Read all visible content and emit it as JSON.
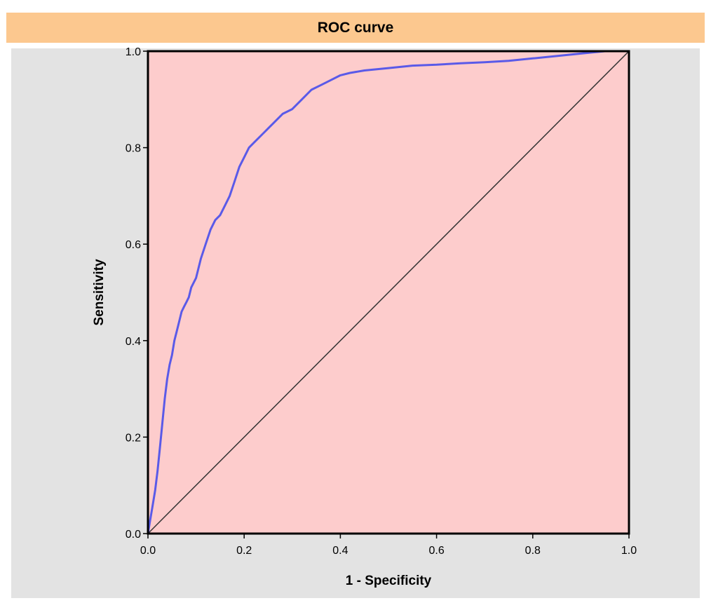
{
  "title_bar": {
    "title": "ROC curve"
  },
  "colors": {
    "title_bar_bg": "#fcc88f",
    "panel_bg": "#e3e3e3",
    "plot_bg": "#fdcccc",
    "curve": "#5a5ae8",
    "reference_line": "#333333"
  },
  "chart_data": {
    "type": "line",
    "title": "ROC curve",
    "xlabel": "1 - Specificity",
    "ylabel": "Sensitivity",
    "xlim": [
      0,
      1
    ],
    "ylim": [
      0,
      1
    ],
    "grid": false,
    "legend": "none",
    "x_ticks": [
      "0.0",
      "0.2",
      "0.4",
      "0.6",
      "0.8",
      "1.0"
    ],
    "y_ticks": [
      "0.0",
      "0.2",
      "0.4",
      "0.6",
      "0.8",
      "1.0"
    ],
    "series": [
      {
        "x": [
          0.0,
          0.005,
          0.01,
          0.015,
          0.02,
          0.025,
          0.03,
          0.035,
          0.04,
          0.045,
          0.05,
          0.055,
          0.06,
          0.065,
          0.07,
          0.075,
          0.08,
          0.085,
          0.09,
          0.1,
          0.11,
          0.12,
          0.13,
          0.14,
          0.15,
          0.16,
          0.17,
          0.18,
          0.19,
          0.2,
          0.21,
          0.22,
          0.23,
          0.24,
          0.25,
          0.26,
          0.28,
          0.3,
          0.32,
          0.34,
          0.36,
          0.38,
          0.4,
          0.42,
          0.45,
          0.5,
          0.55,
          0.6,
          0.65,
          0.7,
          0.75,
          0.8,
          0.85,
          0.9,
          0.95,
          1.0
        ],
        "y": [
          0.0,
          0.03,
          0.06,
          0.09,
          0.13,
          0.18,
          0.23,
          0.28,
          0.32,
          0.35,
          0.37,
          0.4,
          0.42,
          0.44,
          0.46,
          0.47,
          0.48,
          0.49,
          0.51,
          0.53,
          0.57,
          0.6,
          0.63,
          0.65,
          0.66,
          0.68,
          0.7,
          0.73,
          0.76,
          0.78,
          0.8,
          0.81,
          0.82,
          0.83,
          0.84,
          0.85,
          0.87,
          0.88,
          0.9,
          0.92,
          0.93,
          0.94,
          0.95,
          0.955,
          0.96,
          0.965,
          0.97,
          0.972,
          0.975,
          0.977,
          0.98,
          0.985,
          0.99,
          0.995,
          1.0,
          1.0
        ]
      },
      {
        "x": [
          0,
          1
        ],
        "y": [
          0,
          1
        ]
      }
    ]
  }
}
